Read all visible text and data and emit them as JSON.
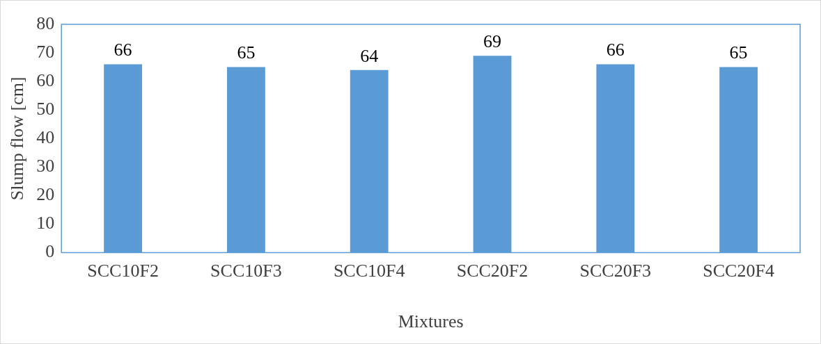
{
  "chart_data": {
    "type": "bar",
    "xlabel": "Mixtures",
    "ylabel": "Slump flow [cm]",
    "categories": [
      "SCC10F2",
      "SCC10F3",
      "SCC10F4",
      "SCC20F2",
      "SCC20F3",
      "SCC20F4"
    ],
    "values": [
      66,
      65,
      64,
      69,
      66,
      65
    ],
    "color": "#5b9bd5",
    "ylim": [
      0,
      80
    ],
    "yticks": [
      0,
      10,
      20,
      30,
      40,
      50,
      60,
      70,
      80
    ],
    "grid": false,
    "legend": false,
    "data_labels": true
  }
}
